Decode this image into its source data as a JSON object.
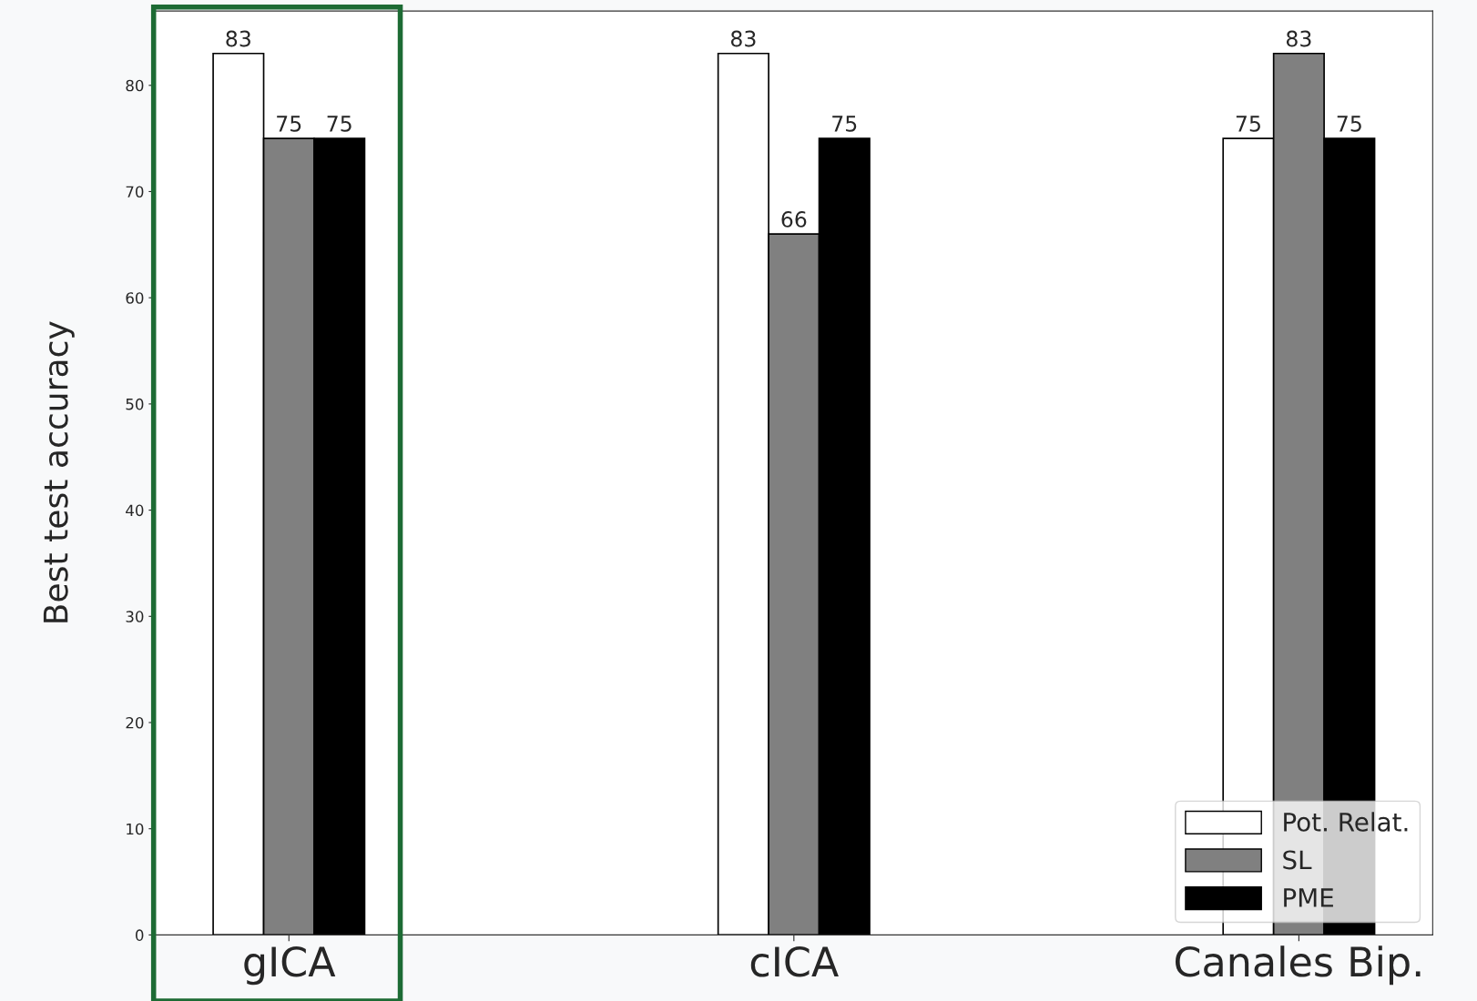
{
  "chart_data": {
    "type": "bar",
    "ylabel": "Best test accuracy",
    "categories": [
      "gICA",
      "cICA",
      "Canales Bip."
    ],
    "series": [
      {
        "name": "Pot. Relat.",
        "color": "#ffffff",
        "values": [
          83,
          83,
          75
        ]
      },
      {
        "name": "SL",
        "color": "#808080",
        "values": [
          75,
          66,
          83
        ]
      },
      {
        "name": "PME",
        "color": "#000000",
        "values": [
          75,
          75,
          75
        ]
      }
    ],
    "ylim": [
      0,
      87
    ],
    "yticks": [
      0,
      10,
      20,
      30,
      40,
      50,
      60,
      70,
      80
    ],
    "data_labels": true,
    "legend": "bottom right",
    "grid": false
  }
}
